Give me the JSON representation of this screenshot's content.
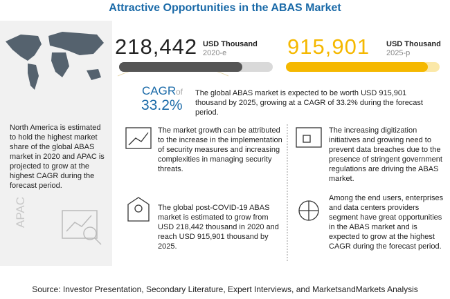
{
  "title": "Attractive Opportunities in the ABAS Market",
  "stats": [
    {
      "value": "218,442",
      "unit": "USD Thousand",
      "year": "2020-e"
    },
    {
      "value": "915,901",
      "unit": "USD Thousand",
      "year": "2025-p"
    }
  ],
  "cagr": {
    "label": "CAGR",
    "of": "of",
    "value": "33.2%",
    "text": "The global ABAS market is expected to be worth USD 915,901 thousand by 2025, growing at a CAGR of 33.2% during the forecast period."
  },
  "region_note": "North America is estimated to hold the highest market share of the global ABAS market in 2020 and APAC is projected to grow at the highest CAGR during the forecast period.",
  "region_label": "APAC",
  "insights": [
    "The market growth can be attributed to the increase in the implementation of security measures and increasing complexities in managing security threats.",
    "The increasing digitization initiatives and growing need to prevent data breaches due to the presence of stringent government regulations are driving the ABAS market.",
    "The global post-COVID-19 ABAS market is estimated to grow from USD 218,442 thousand in 2020 and reach USD 915,901 thousand by 2025.",
    "Among the end users, enterprises and data centers providers segment have great opportunities in the ABAS market and is expected to grow at the highest CAGR during the forecast period."
  ],
  "source": "Source: Investor Presentation, Secondary Literature, Expert Interviews, and MarketsandMarkets Analysis"
}
